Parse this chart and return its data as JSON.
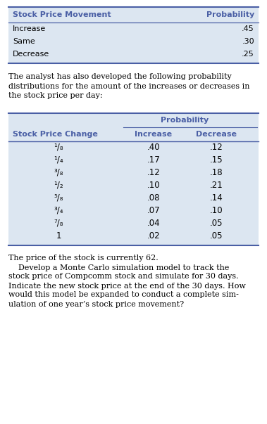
{
  "table1_header": [
    "Stock Price Movement",
    "Probability"
  ],
  "table1_rows": [
    [
      "Increase",
      ".45"
    ],
    [
      "Same",
      ".30"
    ],
    [
      "Decrease",
      ".25"
    ]
  ],
  "para_lines": [
    "The analyst has also developed the following probability",
    "distributions for the amount of the increases or decreases in",
    "the stock price per day:"
  ],
  "table2_group_header": "Probability",
  "table2_col_headers": [
    "Stock Price Change",
    "Increase",
    "Decrease"
  ],
  "table2_rows": [
    [
      "¹/₈",
      ".40",
      ".12"
    ],
    [
      "¹/₄",
      ".17",
      ".15"
    ],
    [
      "³/₈",
      ".12",
      ".18"
    ],
    [
      "¹/₂",
      ".10",
      ".21"
    ],
    [
      "⁵/₈",
      ".08",
      ".14"
    ],
    [
      "³/₄",
      ".07",
      ".10"
    ],
    [
      "⁷/₈",
      ".04",
      ".05"
    ],
    [
      "1",
      ".02",
      ".05"
    ]
  ],
  "footer_lines": [
    "The price of the stock is currently 62.",
    "    Develop a Monte Carlo simulation model to track the",
    "stock price of Compcomm stock and simulate for 30 days.",
    "Indicate the new stock price at the end of the 30 days. How",
    "would this model be expanded to conduct a complete sim-",
    "ulation of one year’s stock price movement?"
  ],
  "subheader_color": "#4a5fa5",
  "table_bg_color": "#dce6f1",
  "border_color": "#4a5fa5",
  "bg_color": "#ffffff",
  "fig_w": 3.79,
  "fig_h": 6.03,
  "dpi": 100
}
